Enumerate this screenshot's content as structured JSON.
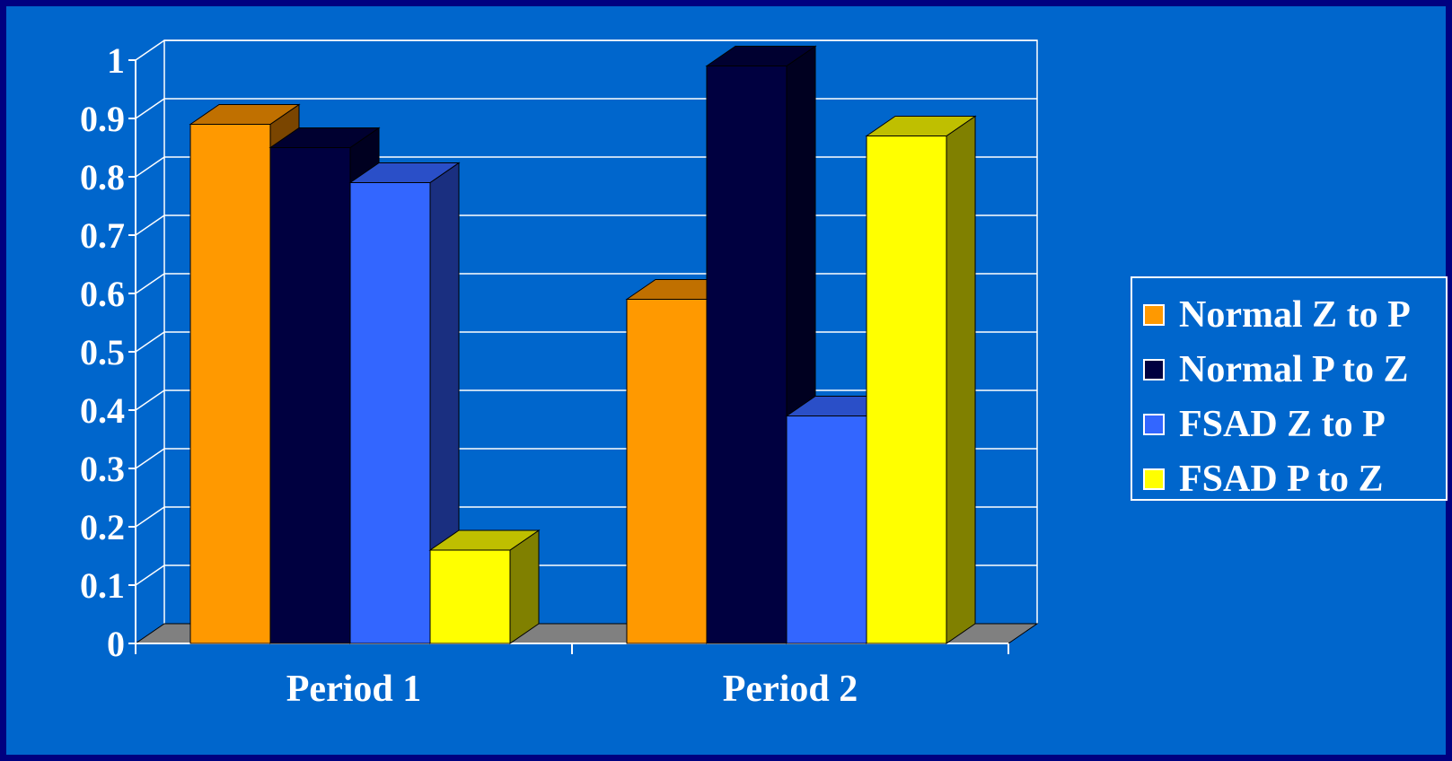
{
  "chart_data": {
    "type": "bar",
    "title": "",
    "xlabel": "",
    "ylabel": "",
    "categories": [
      "Period 1",
      "Period 2"
    ],
    "ylim": [
      0,
      1
    ],
    "yticks": [
      "0",
      "0.1",
      "0.2",
      "0.3",
      "0.4",
      "0.5",
      "0.6",
      "0.7",
      "0.8",
      "0.9",
      "1"
    ],
    "grid": true,
    "legend_position": "right",
    "series": [
      {
        "name": "Normal Z to P",
        "values": [
          0.89,
          0.59
        ],
        "color": "#ff9900",
        "top_color": "#c07000",
        "side_color": "#7a4500"
      },
      {
        "name": "Normal P to Z",
        "values": [
          0.85,
          0.99
        ],
        "color": "#000040",
        "top_color": "#000030",
        "side_color": "#000020"
      },
      {
        "name": "FSAD Z to P",
        "values": [
          0.79,
          0.39
        ],
        "color": "#3366ff",
        "top_color": "#2a4fc8",
        "side_color": "#1a2f80"
      },
      {
        "name": "FSAD P to Z",
        "values": [
          0.16,
          0.87
        ],
        "color": "#ffff00",
        "top_color": "#bfbf00",
        "side_color": "#808000"
      }
    ]
  },
  "colors": {
    "background": "#0066cc",
    "border": "#000080",
    "floor": "#808080",
    "grid": "#ffffff",
    "text": "#ffffff"
  }
}
